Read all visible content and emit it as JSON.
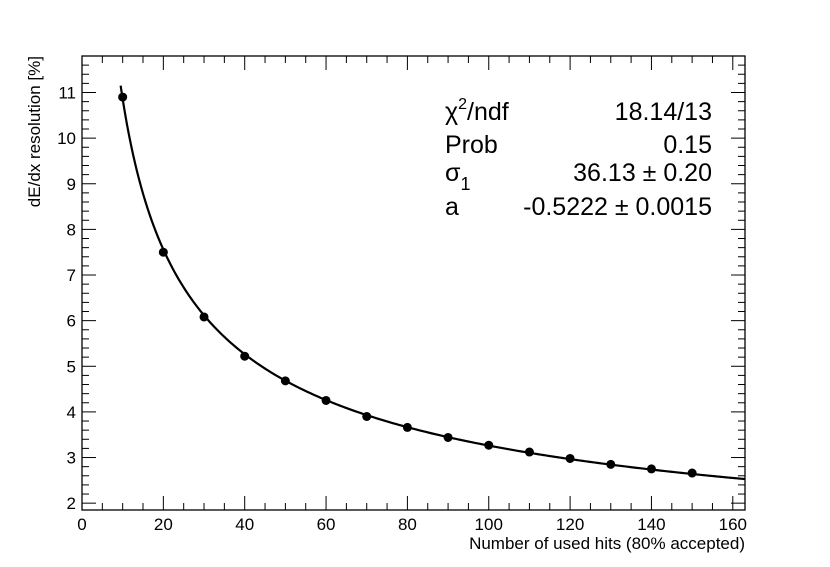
{
  "chart_data": {
    "type": "scatter",
    "xlabel": "Number of used hits (80% accepted)",
    "ylabel": "dE/dx resolution [%]",
    "xlim": [
      0,
      163
    ],
    "ylim": [
      1.85,
      11.8
    ],
    "x_ticks": [
      0,
      20,
      40,
      60,
      80,
      100,
      120,
      140,
      160
    ],
    "y_ticks": [
      2,
      3,
      4,
      5,
      6,
      7,
      8,
      9,
      10,
      11
    ],
    "grid": false,
    "legend": "none",
    "series": [
      {
        "kind": "points",
        "x": [
          10,
          20,
          30,
          40,
          50,
          60,
          70,
          80,
          90,
          100,
          110,
          120,
          130,
          140,
          150
        ],
        "y": [
          10.9,
          7.5,
          6.08,
          5.22,
          4.68,
          4.25,
          3.9,
          3.66,
          3.44,
          3.27,
          3.12,
          2.98,
          2.85,
          2.75,
          2.66
        ]
      },
      {
        "kind": "fit",
        "function": "sigma1 * x^a",
        "params": {
          "sigma1": 36.13,
          "a": -0.5222
        },
        "x_range": [
          9.5,
          163
        ]
      }
    ],
    "stats_box": [
      {
        "label": "χ",
        "sup": "2",
        "suffix": "/ndf",
        "value": "18.14/13"
      },
      {
        "label": "Prob",
        "value": "0.15"
      },
      {
        "label": "σ",
        "sub": "1",
        "value": "36.13 ± 0.20"
      },
      {
        "label": "a",
        "value": "-0.5222 ± 0.0015"
      }
    ]
  }
}
